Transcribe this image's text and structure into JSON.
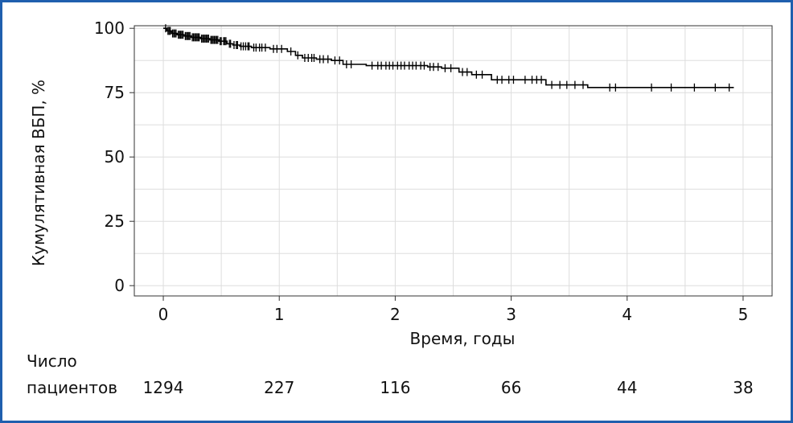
{
  "colors": {
    "frame": "#1f5fae",
    "curve": "#000000",
    "grid": "#dddddd",
    "axis": "#333333"
  },
  "chart_data": {
    "type": "line",
    "xlabel": "Время, годы",
    "ylabel": "Кумулятивная ВБП, %",
    "xlim": [
      -0.25,
      5.25
    ],
    "ylim": [
      -4,
      101
    ],
    "xticks": [
      "0",
      "1",
      "2",
      "3",
      "4",
      "5"
    ],
    "yticks": [
      "0",
      "25",
      "50",
      "75",
      "100"
    ],
    "grid": true,
    "series": [
      {
        "steps": [
          [
            0.0,
            100
          ],
          [
            0.03,
            99
          ],
          [
            0.07,
            98
          ],
          [
            0.12,
            97.5
          ],
          [
            0.18,
            97
          ],
          [
            0.24,
            96.5
          ],
          [
            0.32,
            96
          ],
          [
            0.4,
            95.5
          ],
          [
            0.48,
            95
          ],
          [
            0.55,
            94
          ],
          [
            0.6,
            93.5
          ],
          [
            0.66,
            93
          ],
          [
            0.76,
            92.5
          ],
          [
            0.92,
            92
          ],
          [
            1.07,
            91
          ],
          [
            1.14,
            89.5
          ],
          [
            1.2,
            88.5
          ],
          [
            1.32,
            88
          ],
          [
            1.45,
            87.5
          ],
          [
            1.55,
            86
          ],
          [
            1.75,
            85.5
          ],
          [
            2.28,
            85
          ],
          [
            2.4,
            84.5
          ],
          [
            2.55,
            83
          ],
          [
            2.66,
            82
          ],
          [
            2.83,
            80
          ],
          [
            3.3,
            78
          ],
          [
            3.66,
            77
          ],
          [
            4.92,
            77
          ]
        ],
        "censored_x": [
          0.02,
          0.04,
          0.05,
          0.06,
          0.08,
          0.09,
          0.1,
          0.11,
          0.13,
          0.14,
          0.15,
          0.16,
          0.17,
          0.19,
          0.2,
          0.21,
          0.22,
          0.23,
          0.25,
          0.26,
          0.27,
          0.28,
          0.29,
          0.3,
          0.31,
          0.33,
          0.34,
          0.35,
          0.36,
          0.37,
          0.38,
          0.39,
          0.41,
          0.42,
          0.43,
          0.44,
          0.45,
          0.46,
          0.47,
          0.49,
          0.5,
          0.52,
          0.53,
          0.54,
          0.57,
          0.58,
          0.61,
          0.63,
          0.64,
          0.67,
          0.69,
          0.71,
          0.73,
          0.74,
          0.78,
          0.8,
          0.83,
          0.85,
          0.88,
          0.95,
          0.98,
          1.02,
          1.1,
          1.16,
          1.22,
          1.25,
          1.28,
          1.3,
          1.35,
          1.38,
          1.42,
          1.48,
          1.52,
          1.58,
          1.62,
          1.8,
          1.85,
          1.88,
          1.92,
          1.95,
          1.98,
          2.02,
          2.05,
          2.08,
          2.12,
          2.15,
          2.18,
          2.22,
          2.25,
          2.3,
          2.33,
          2.37,
          2.43,
          2.48,
          2.58,
          2.62,
          2.7,
          2.75,
          2.88,
          2.92,
          2.98,
          3.02,
          3.12,
          3.18,
          3.22,
          3.26,
          3.35,
          3.42,
          3.48,
          3.55,
          3.62,
          3.85,
          3.9,
          4.21,
          4.38,
          4.58,
          4.76,
          4.88
        ]
      }
    ],
    "at_risk": {
      "label_line1": "Число",
      "label_line2": "пациентов",
      "values": [
        "1294",
        "227",
        "116",
        "66",
        "44",
        "38"
      ]
    }
  }
}
